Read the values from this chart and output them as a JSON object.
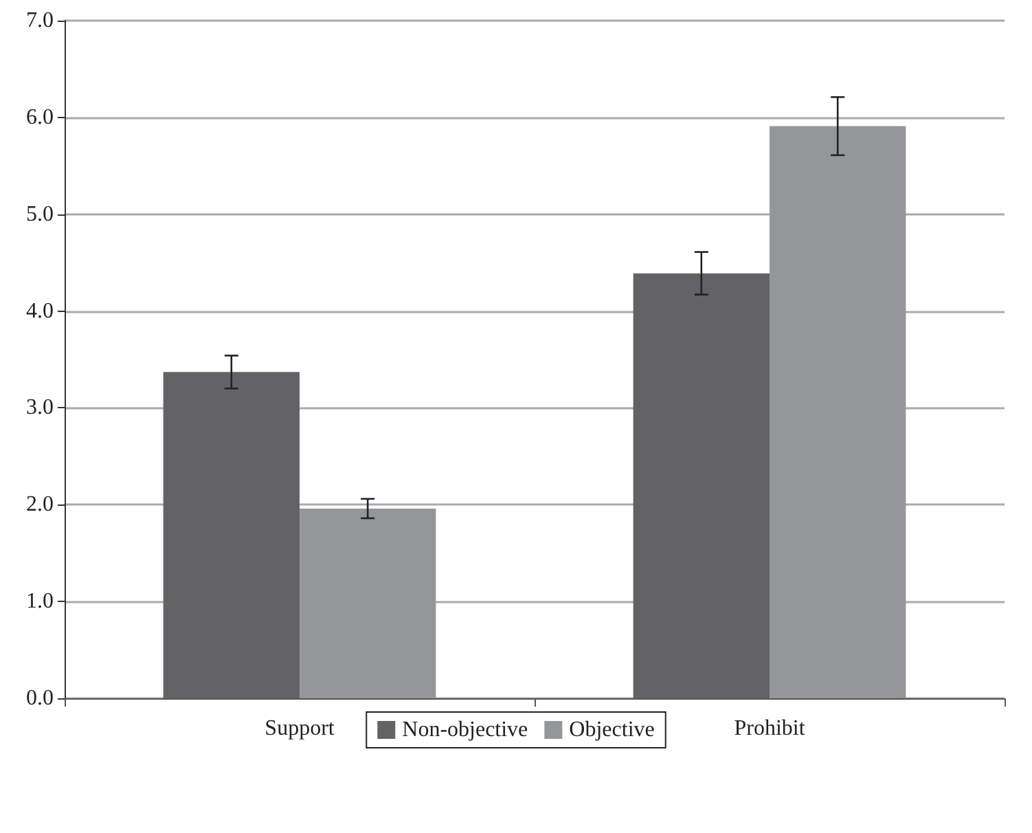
{
  "chart_data": {
    "type": "bar",
    "categories": [
      "Support",
      "Prohibit"
    ],
    "series": [
      {
        "name": "Non-objective",
        "color": "#636365",
        "values": [
          3.37,
          4.39
        ],
        "errors": [
          0.17,
          0.22
        ]
      },
      {
        "name": "Objective",
        "color": "#959699",
        "values": [
          1.96,
          5.91
        ],
        "errors": [
          0.1,
          0.3
        ]
      }
    ],
    "ylim": [
      0,
      7
    ],
    "yticks": [
      {
        "value": 0,
        "label": "0.0"
      },
      {
        "value": 1,
        "label": "1.0"
      },
      {
        "value": 2,
        "label": "2.0"
      },
      {
        "value": 3,
        "label": "3.0"
      },
      {
        "value": 4,
        "label": "4.0"
      },
      {
        "value": 5,
        "label": "5.0"
      },
      {
        "value": 6,
        "label": "6.0"
      },
      {
        "value": 7,
        "label": "7.0"
      }
    ],
    "grid": "y",
    "legend": "bottom"
  }
}
